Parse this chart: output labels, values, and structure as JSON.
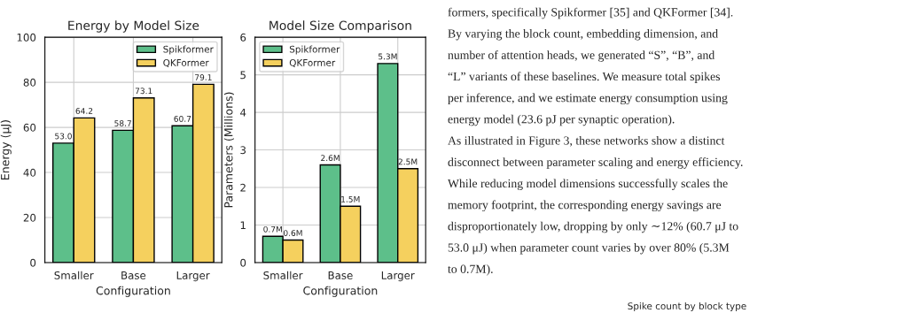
{
  "chart_data": [
    {
      "type": "bar",
      "title": "Energy by Model Size",
      "xlabel": "Configuration",
      "ylabel": "Energy (μJ)",
      "categories": [
        "Smaller",
        "Base",
        "Larger"
      ],
      "ylim": [
        0,
        100
      ],
      "yticks": [
        0,
        20,
        40,
        60,
        80,
        100
      ],
      "grid": true,
      "legend": "top right",
      "series": [
        {
          "name": "Spikformer",
          "color": "#5dbf8a",
          "values": [
            53.0,
            58.7,
            60.7
          ],
          "value_labels": [
            "53.0",
            "58.7",
            "60.7"
          ]
        },
        {
          "name": "QKFormer",
          "color": "#f5d05e",
          "values": [
            64.2,
            73.1,
            79.1
          ],
          "value_labels": [
            "64.2",
            "73.1",
            "79.1"
          ]
        }
      ]
    },
    {
      "type": "bar",
      "title": "Model Size Comparison",
      "xlabel": "Configuration",
      "ylabel": "Parameters (Millions)",
      "categories": [
        "Smaller",
        "Base",
        "Larger"
      ],
      "ylim": [
        0,
        6
      ],
      "yticks": [
        0,
        1,
        2,
        3,
        4,
        5,
        6
      ],
      "grid": true,
      "legend": "top left",
      "series": [
        {
          "name": "Spikformer",
          "color": "#5dbf8a",
          "values": [
            0.7,
            2.6,
            5.3
          ],
          "value_labels": [
            "0.7M",
            "2.6M",
            "5.3M"
          ]
        },
        {
          "name": "QKFormer",
          "color": "#f5d05e",
          "values": [
            0.6,
            1.5,
            2.5
          ],
          "value_labels": [
            "0.6M",
            "1.5M",
            "2.5M"
          ]
        }
      ]
    },
    {
      "type": "other",
      "title": "Spike count by block type",
      "annotations": [
        "formers, specifically Spikformer [35] and QKFormer [34].",
        "By varying the block count, embedding dimension, and",
        "number of attention heads, we generated “S”, “B”, and",
        "“L” variants of these baselines. We measure total spikes",
        "per inference, and we estimate energy consumption using",
        "energy model (23.6 pJ per synaptic operation).",
        "As illustrated in Figure 3, these networks show a distinct",
        "disconnect between parameter scaling and energy efficiency.",
        "While reducing model dimensions successfully scales the",
        "memory footprint, the corresponding energy savings are",
        "disproportionately low, dropping by only ∼12% (60.7 μJ to",
        "53.0 μJ) when parameter count varies by over 80% (5.3M",
        "to 0.7M)."
      ]
    }
  ]
}
